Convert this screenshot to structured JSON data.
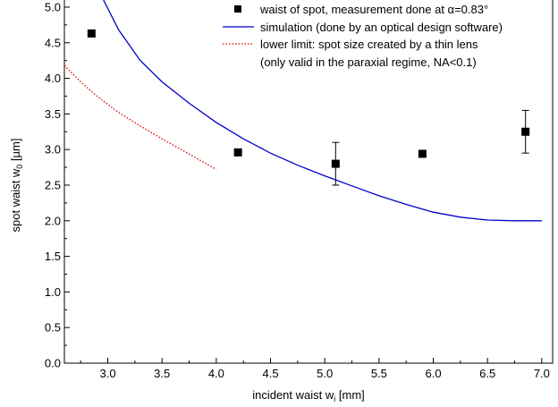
{
  "chart_data": {
    "type": "scatter",
    "title": "",
    "xlabel": {
      "text": "incident waist w",
      "sub": "i",
      "suffix": " [mm]"
    },
    "ylabel": {
      "text": "spot waist w",
      "sub": "0",
      "suffix": " [µm]"
    },
    "xlim": [
      2.6,
      7.1
    ],
    "ylim": [
      0.0,
      5.1
    ],
    "xticks": [
      3.0,
      3.5,
      4.0,
      4.5,
      5.0,
      5.5,
      6.0,
      6.5,
      7.0
    ],
    "xtick_labels": [
      "3.0",
      "3.5",
      "4.0",
      "4.5",
      "5.0",
      "5.5",
      "6.0",
      "6.5",
      "7.0"
    ],
    "yticks": [
      0.0,
      0.5,
      1.0,
      1.5,
      2.0,
      2.5,
      3.0,
      3.5,
      4.0,
      4.5,
      5.0
    ],
    "ytick_labels": [
      "0.0",
      "0.5",
      "1.0",
      "1.5",
      "2.0",
      "2.5",
      "3.0",
      "3.5",
      "4.0",
      "4.5",
      "5.0"
    ],
    "grid": false,
    "legend_position": "top-right",
    "series": [
      {
        "name": "waist of spot, measurement done at α=0.83°",
        "kind": "scatter",
        "color": "#000000",
        "marker": "square",
        "points": [
          {
            "x": 2.85,
            "y": 4.63
          },
          {
            "x": 4.2,
            "y": 2.96
          },
          {
            "x": 5.1,
            "y": 2.8,
            "err": 0.3
          },
          {
            "x": 5.9,
            "y": 2.94
          },
          {
            "x": 6.85,
            "y": 3.25,
            "err": 0.3
          }
        ]
      },
      {
        "name": "simulation (done by an optical design software)",
        "kind": "line",
        "color": "#0000cc",
        "style": "solid",
        "points": [
          {
            "x": 2.96,
            "y": 5.1
          },
          {
            "x": 3.1,
            "y": 4.68
          },
          {
            "x": 3.3,
            "y": 4.25
          },
          {
            "x": 3.5,
            "y": 3.95
          },
          {
            "x": 3.75,
            "y": 3.65
          },
          {
            "x": 4.0,
            "y": 3.38
          },
          {
            "x": 4.25,
            "y": 3.15
          },
          {
            "x": 4.5,
            "y": 2.95
          },
          {
            "x": 4.75,
            "y": 2.78
          },
          {
            "x": 5.0,
            "y": 2.63
          },
          {
            "x": 5.25,
            "y": 2.49
          },
          {
            "x": 5.5,
            "y": 2.35
          },
          {
            "x": 5.75,
            "y": 2.23
          },
          {
            "x": 6.0,
            "y": 2.12
          },
          {
            "x": 6.25,
            "y": 2.05
          },
          {
            "x": 6.5,
            "y": 2.01
          },
          {
            "x": 6.75,
            "y": 2.0
          },
          {
            "x": 7.0,
            "y": 2.0
          }
        ]
      },
      {
        "name": "lower limit: spot size created by a thin lens",
        "name_line2": "(only valid in the paraxial regime, NA<0.1)",
        "kind": "line",
        "color": "#dd0000",
        "style": "dotted",
        "points": [
          {
            "x": 2.6,
            "y": 4.18
          },
          {
            "x": 2.75,
            "y": 3.95
          },
          {
            "x": 2.9,
            "y": 3.75
          },
          {
            "x": 3.1,
            "y": 3.52
          },
          {
            "x": 3.3,
            "y": 3.33
          },
          {
            "x": 3.5,
            "y": 3.15
          },
          {
            "x": 3.7,
            "y": 2.98
          },
          {
            "x": 3.85,
            "y": 2.85
          },
          {
            "x": 4.0,
            "y": 2.72
          }
        ]
      }
    ]
  }
}
